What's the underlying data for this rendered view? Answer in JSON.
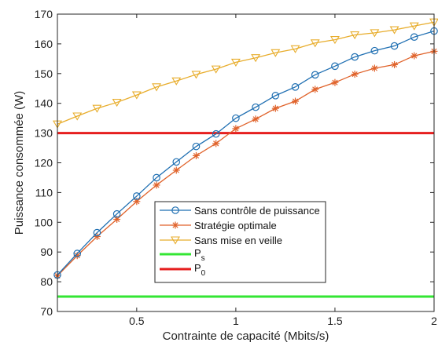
{
  "chart_data": {
    "type": "line",
    "xlabel": "Contrainte de capacité (Mbits/s)",
    "ylabel": "Puissance consommée (W)",
    "xlim": [
      0.1,
      2.0
    ],
    "ylim": [
      70,
      170
    ],
    "xticks": [
      0.5,
      1,
      1.5,
      2
    ],
    "xtick_labels": [
      "0.5",
      "1",
      "1.5",
      "2"
    ],
    "yticks": [
      70,
      80,
      90,
      100,
      110,
      120,
      130,
      140,
      150,
      160,
      170
    ],
    "ytick_labels": [
      "70",
      "80",
      "90",
      "100",
      "110",
      "120",
      "130",
      "140",
      "150",
      "160",
      "170"
    ],
    "grid": false,
    "legend_placement": "bottom-right",
    "x": [
      0.1,
      0.2,
      0.3,
      0.4,
      0.5,
      0.6,
      0.7,
      0.8,
      0.9,
      1.0,
      1.1,
      1.2,
      1.3,
      1.4,
      1.5,
      1.6,
      1.7,
      1.8,
      1.9,
      2.0
    ],
    "series": [
      {
        "name": "Sans contrôle de puissance",
        "marker": "circle",
        "color": "#1f6fb2",
        "values": [
          82.3,
          89.5,
          96.5,
          102.8,
          108.8,
          115.0,
          120.3,
          125.5,
          129.7,
          135.0,
          138.7,
          142.6,
          145.5,
          149.6,
          152.5,
          155.6,
          157.7,
          159.3,
          162.3,
          164.3
        ]
      },
      {
        "name": "Stratégie optimale",
        "marker": "asterisk",
        "color": "#e0622a",
        "values": [
          82.0,
          88.8,
          95.2,
          101.0,
          107.0,
          112.5,
          117.5,
          122.4,
          126.5,
          131.5,
          134.7,
          138.3,
          140.7,
          144.7,
          147.0,
          149.8,
          151.8,
          153.0,
          156.0,
          157.5
        ]
      },
      {
        "name": "Sans mise en veille",
        "marker": "triangle-down",
        "color": "#e8ad2c",
        "values": [
          133.0,
          135.7,
          138.3,
          140.3,
          142.8,
          145.5,
          147.5,
          149.7,
          151.5,
          153.8,
          155.3,
          157.0,
          158.3,
          160.3,
          161.4,
          163.0,
          163.7,
          164.7,
          166.0,
          167.3
        ]
      },
      {
        "name_main": "P",
        "name_sub": "s",
        "type": "hline",
        "color": "#33e633",
        "value": 75
      },
      {
        "name_main": "P",
        "name_sub": "0",
        "type": "hline",
        "color": "#e61e1e",
        "value": 130
      }
    ]
  }
}
